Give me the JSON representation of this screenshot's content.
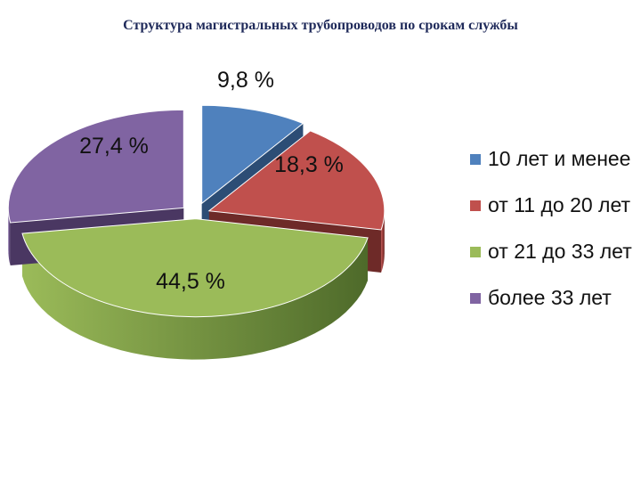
{
  "chart_data": {
    "type": "pie",
    "title": "Структура магистральных трубопроводов по срокам службы",
    "slices": [
      {
        "label": "10 лет и менее",
        "value": 9.8,
        "value_label": "9,8 %",
        "color": "#4f81bd",
        "color_dark": "#2c4d75"
      },
      {
        "label": "от 11 до 20 лет",
        "value": 18.3,
        "value_label": "18,3 %",
        "color": "#c0504d",
        "color_dark": "#6e2a28"
      },
      {
        "label": "от 21 до 33 лет",
        "value": 44.5,
        "value_label": "44,5 %",
        "color": "#9bbb59",
        "color_dark": "#4e6a2a"
      },
      {
        "label": "более 33 лет",
        "value": 27.4,
        "value_label": "27,4 %",
        "color": "#8064a2",
        "color_dark": "#4a3762"
      }
    ],
    "style": "3d-exploded",
    "legend": "right"
  }
}
